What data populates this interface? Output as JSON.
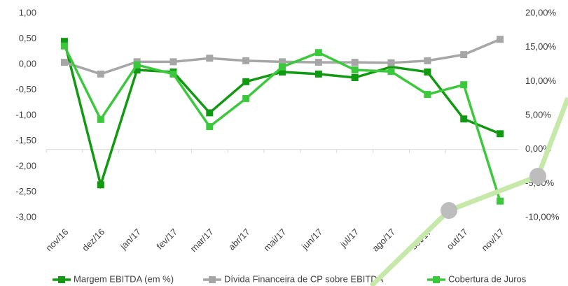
{
  "chart_data": {
    "type": "line",
    "categories": [
      "nov/16",
      "dez/16",
      "jan/17",
      "fev/17",
      "mar/17",
      "abr/17",
      "mai/17",
      "jun/17",
      "jul/17",
      "ago/17",
      "set/17",
      "out/17",
      "nov/17"
    ],
    "series": [
      {
        "name": "Margem EBITDA (em %)",
        "color": "#119a11",
        "values": [
          0.45,
          -2.36,
          -0.11,
          -0.15,
          -0.95,
          -0.34,
          -0.15,
          -0.19,
          -0.26,
          -0.05,
          -0.15,
          -1.07,
          -1.36
        ]
      },
      {
        "name": "Dívida Financeira de CP sobre EBITDA",
        "color": "#a6a6a6",
        "values": [
          0.04,
          -0.19,
          0.05,
          0.05,
          0.12,
          0.07,
          0.05,
          0.04,
          0.04,
          0.03,
          0.07,
          0.19,
          0.49
        ]
      },
      {
        "name": "Cobertura de Juros",
        "color": "#3cc83c",
        "values": [
          0.36,
          -1.08,
          -0.01,
          -0.19,
          -1.22,
          -0.67,
          -0.05,
          0.23,
          -0.11,
          -0.14,
          -0.59,
          -0.4,
          -2.68
        ]
      }
    ],
    "ylim": [
      -3,
      1
    ],
    "yticks": [
      {
        "value": 1,
        "label": "1,00"
      },
      {
        "value": 0.5,
        "label": "0,50"
      },
      {
        "value": 0,
        "label": "0,00"
      },
      {
        "value": -0.5,
        "label": "-0,50"
      },
      {
        "value": -1,
        "label": "-1,00"
      },
      {
        "value": -1.5,
        "label": "-1,50"
      },
      {
        "value": -2,
        "label": "-2,00"
      },
      {
        "value": -2.5,
        "label": "-2,50"
      },
      {
        "value": -3,
        "label": "-3,00"
      }
    ],
    "y2lim": [
      -10,
      20
    ],
    "y2ticks": [
      {
        "value": 20,
        "label": "20,00%"
      },
      {
        "value": 15,
        "label": "15,00%"
      },
      {
        "value": 10,
        "label": "10,00%"
      },
      {
        "value": 5,
        "label": "5,00%"
      },
      {
        "value": 0,
        "label": "0,00%"
      },
      {
        "value": -5,
        "label": "-5,00%"
      },
      {
        "value": -10,
        "label": "-10,00%"
      }
    ],
    "legend": "bottom"
  }
}
